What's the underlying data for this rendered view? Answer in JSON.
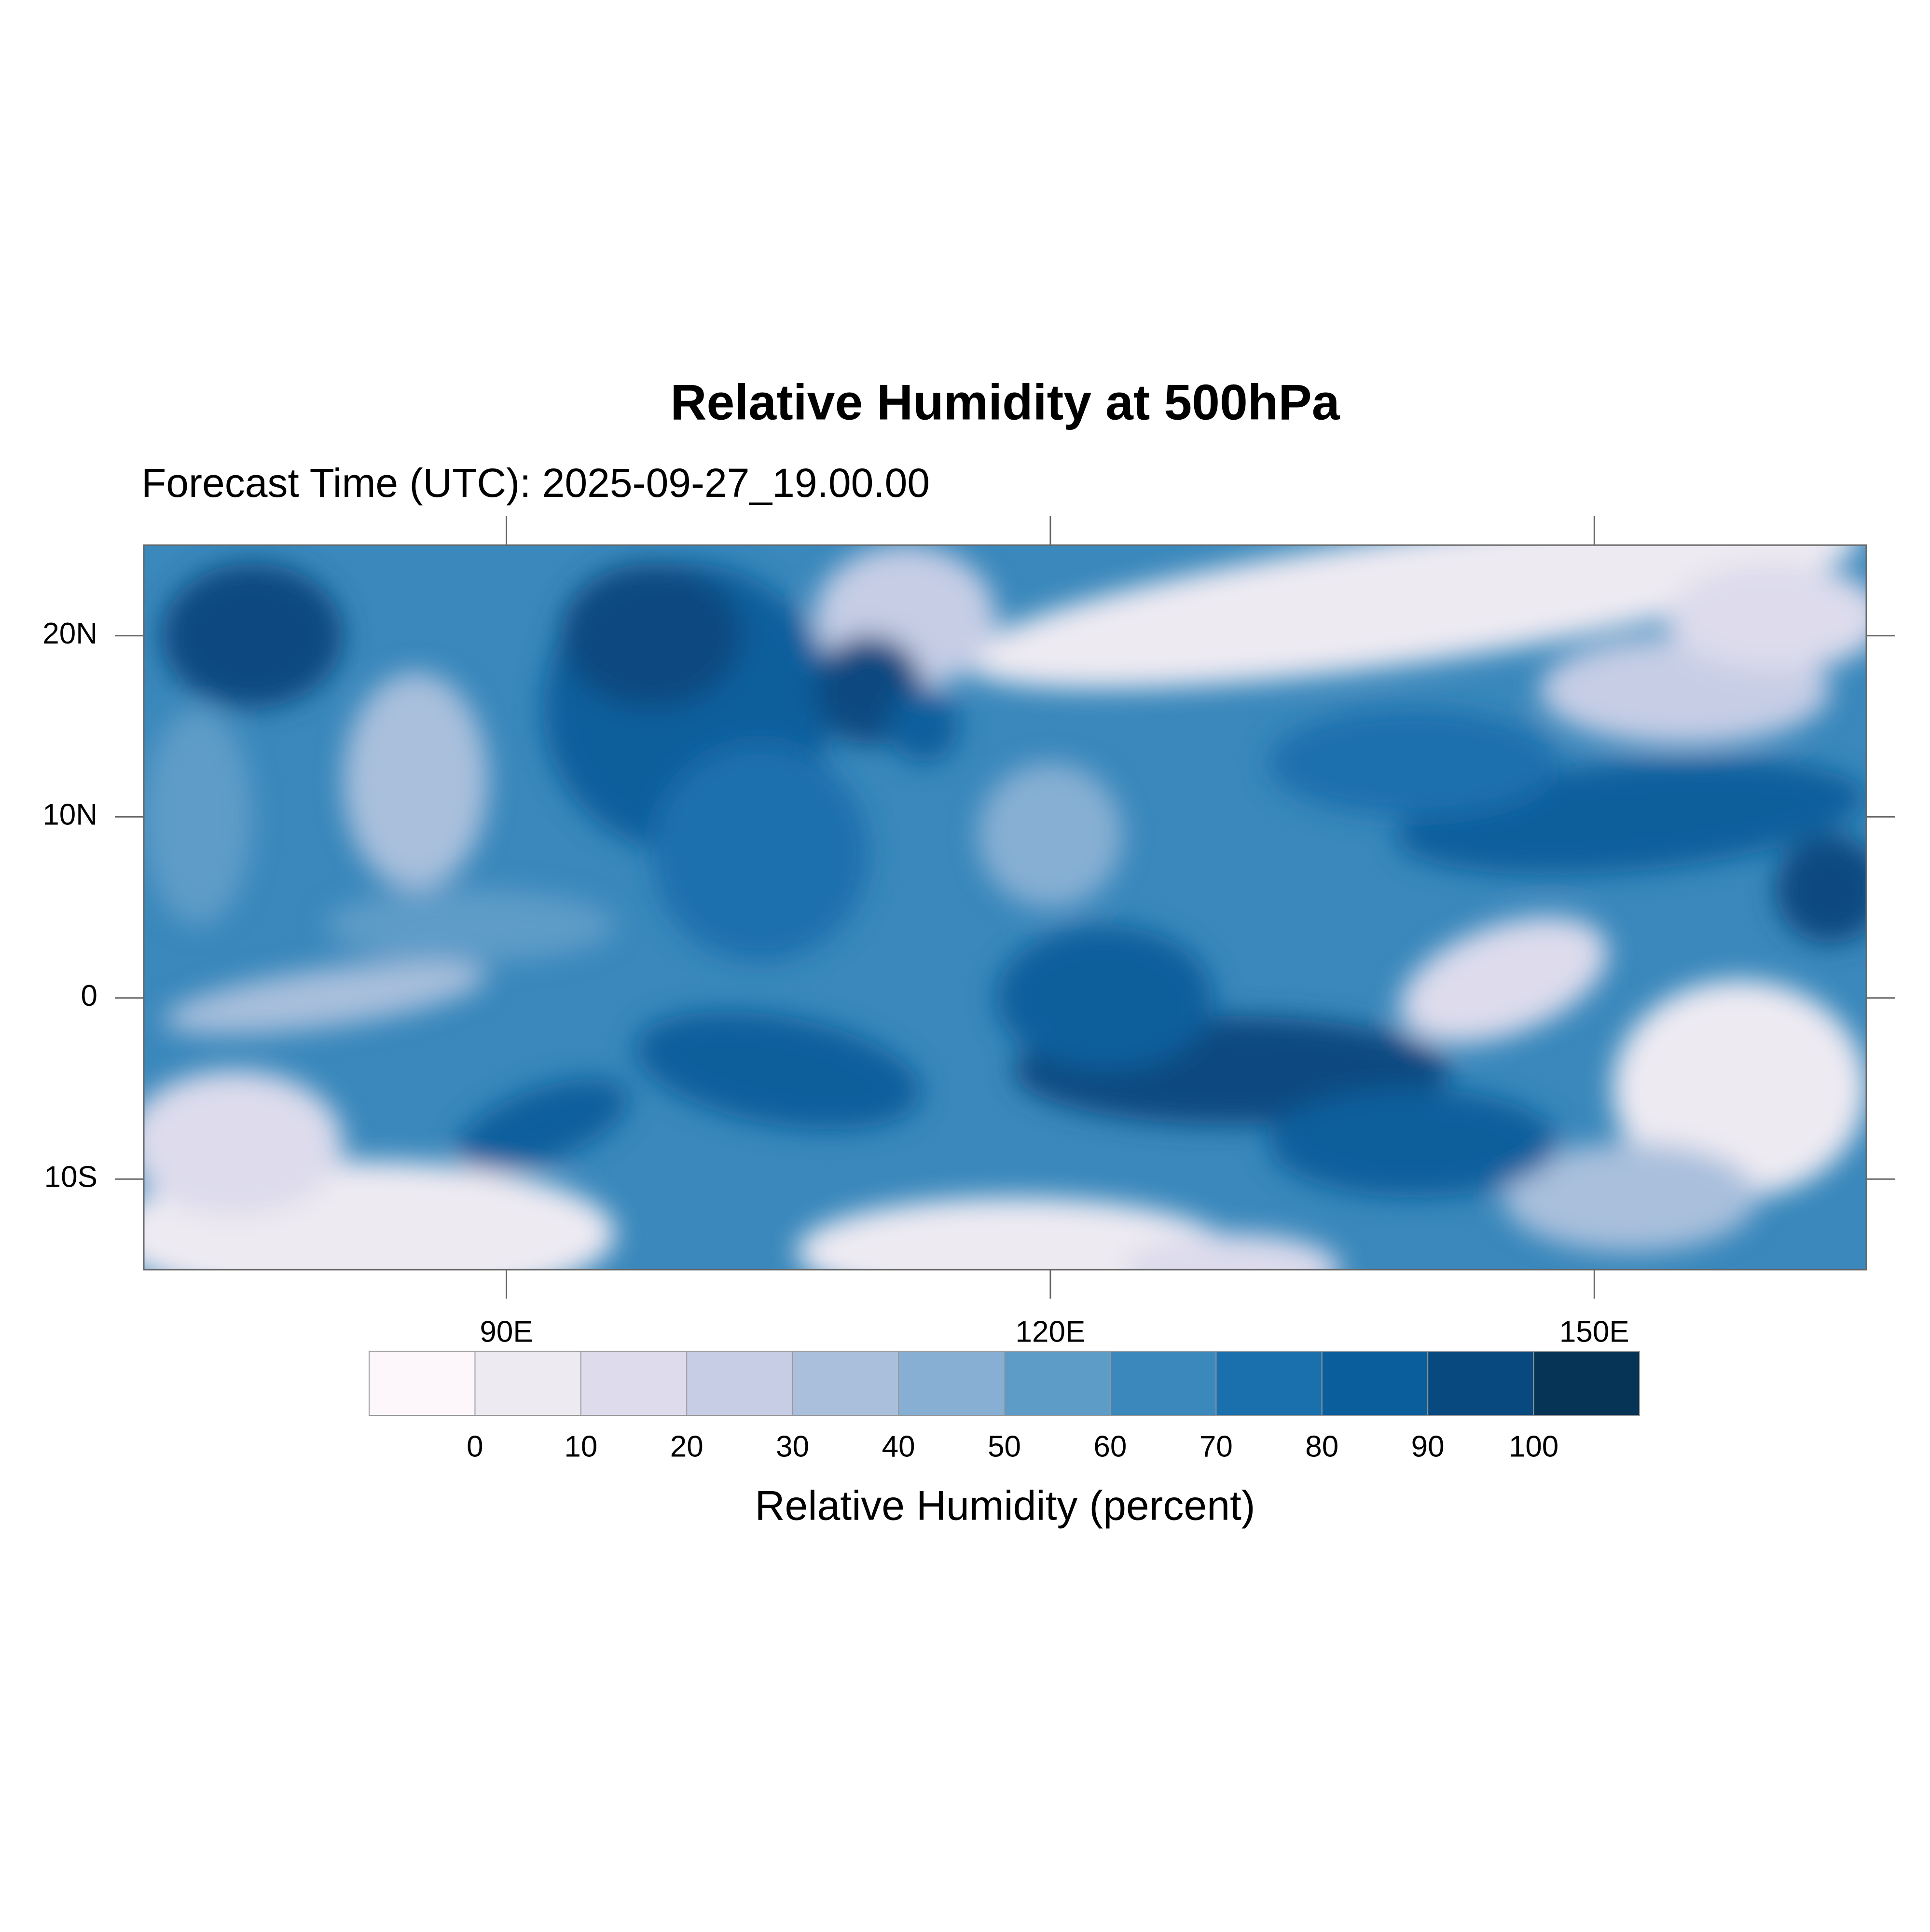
{
  "chart_data": {
    "type": "map",
    "title": "Relative Humidity at 500hPa",
    "subtitle": "Forecast Time (UTC): 2025-09-27_19.00.00",
    "xlim": [
      70,
      165
    ],
    "ylim": [
      -15,
      25
    ],
    "xticks": [
      {
        "value": 90,
        "label": "90E"
      },
      {
        "value": 120,
        "label": "120E"
      },
      {
        "value": 150,
        "label": "150E"
      }
    ],
    "yticks": [
      {
        "value": -10,
        "label": "10S"
      },
      {
        "value": 0,
        "label": "0"
      },
      {
        "value": 10,
        "label": "10N"
      },
      {
        "value": 20,
        "label": "20N"
      }
    ],
    "colorbar": {
      "title": "Relative Humidity (percent)",
      "levels": [
        0,
        10,
        20,
        30,
        40,
        50,
        60,
        70,
        80,
        90,
        100
      ],
      "colors": [
        "#fdf6fa",
        "#eeeaf2",
        "#dddbec",
        "#c6cde5",
        "#a9bfdc",
        "#87afd3",
        "#5e9cc8",
        "#3a88bc",
        "#1a70ad",
        "#0a5e9c",
        "#084a80",
        "#053457"
      ]
    }
  }
}
